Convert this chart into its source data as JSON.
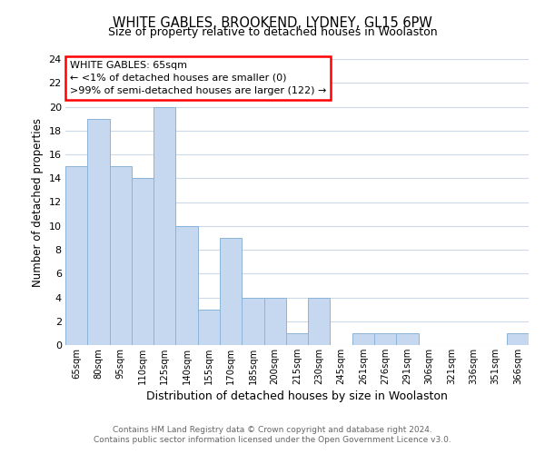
{
  "title": "WHITE GABLES, BROOKEND, LYDNEY, GL15 6PW",
  "subtitle": "Size of property relative to detached houses in Woolaston",
  "xlabel": "Distribution of detached houses by size in Woolaston",
  "ylabel": "Number of detached properties",
  "bar_color": "#c5d8ef",
  "bar_edge_color": "#8ab4d8",
  "categories": [
    "65sqm",
    "80sqm",
    "95sqm",
    "110sqm",
    "125sqm",
    "140sqm",
    "155sqm",
    "170sqm",
    "185sqm",
    "200sqm",
    "215sqm",
    "230sqm",
    "245sqm",
    "261sqm",
    "276sqm",
    "291sqm",
    "306sqm",
    "321sqm",
    "336sqm",
    "351sqm",
    "366sqm"
  ],
  "values": [
    15,
    19,
    15,
    14,
    20,
    10,
    3,
    9,
    4,
    4,
    1,
    4,
    0,
    1,
    1,
    1,
    0,
    0,
    0,
    0,
    1
  ],
  "ylim": [
    0,
    24
  ],
  "yticks": [
    0,
    2,
    4,
    6,
    8,
    10,
    12,
    14,
    16,
    18,
    20,
    22,
    24
  ],
  "annotation_line1": "WHITE GABLES: 65sqm",
  "annotation_line2": "← <1% of detached houses are smaller (0)",
  "annotation_line3": ">99% of semi-detached houses are larger (122) →",
  "footer_line1": "Contains HM Land Registry data © Crown copyright and database right 2024.",
  "footer_line2": "Contains public sector information licensed under the Open Government Licence v3.0.",
  "background_color": "#ffffff",
  "grid_color": "#ccd9e8"
}
